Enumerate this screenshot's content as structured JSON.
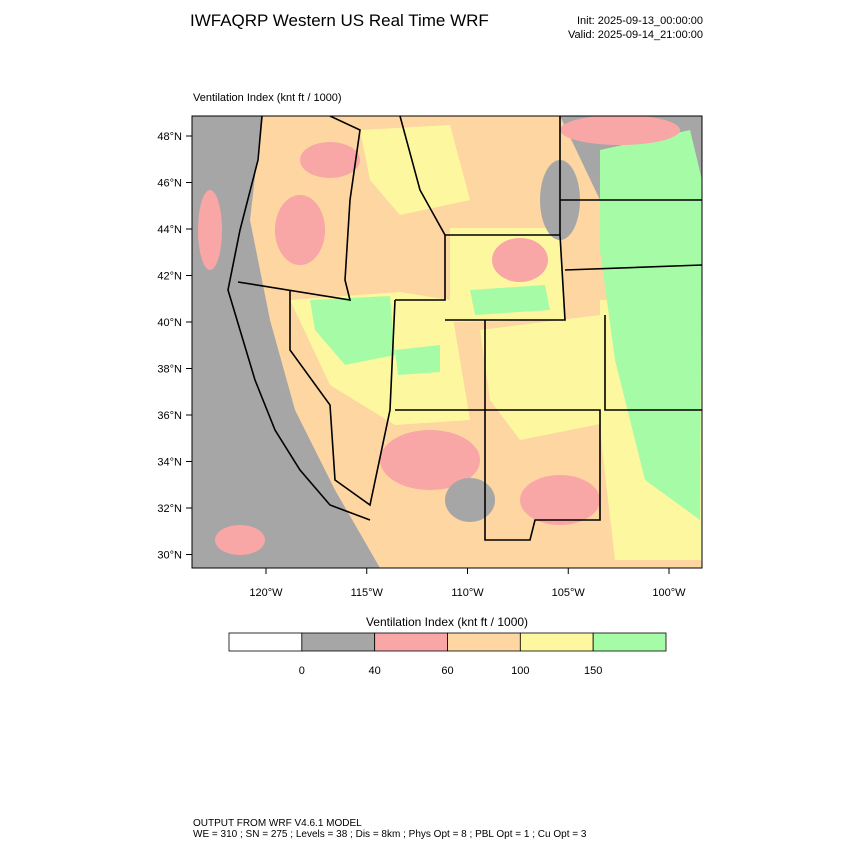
{
  "header": {
    "title": "IWFAQRP Western US Real Time WRF",
    "init": "Init: 2025-09-13_00:00:00",
    "valid": "Valid: 2025-09-14_21:00:00"
  },
  "map": {
    "subtitle": "Ventilation Index   (knt ft / 1000)",
    "lat_labels": [
      "48°N",
      "46°N",
      "44°N",
      "42°N",
      "40°N",
      "38°N",
      "36°N",
      "34°N",
      "32°N",
      "30°N"
    ],
    "lon_labels": [
      "120°W",
      "115°W",
      "110°W",
      "105°W",
      "100°W"
    ]
  },
  "colorbar": {
    "title": "Ventilation Index   (knt ft / 1000)",
    "colors": [
      "#ffffff",
      "#a6a6a6",
      "#f8a6a6",
      "#fdd6a2",
      "#fdf8a0",
      "#a6fca6"
    ],
    "labels": [
      "0",
      "40",
      "60",
      "100",
      "150"
    ]
  },
  "footer": {
    "line1": "OUTPUT FROM WRF V4.6.1 MODEL",
    "line2": "WE = 310 ; SN = 275 ; Levels = 38 ; Dis = 8km ; Phys Opt = 8 ; PBL Opt = 1 ; Cu Opt = 3"
  }
}
